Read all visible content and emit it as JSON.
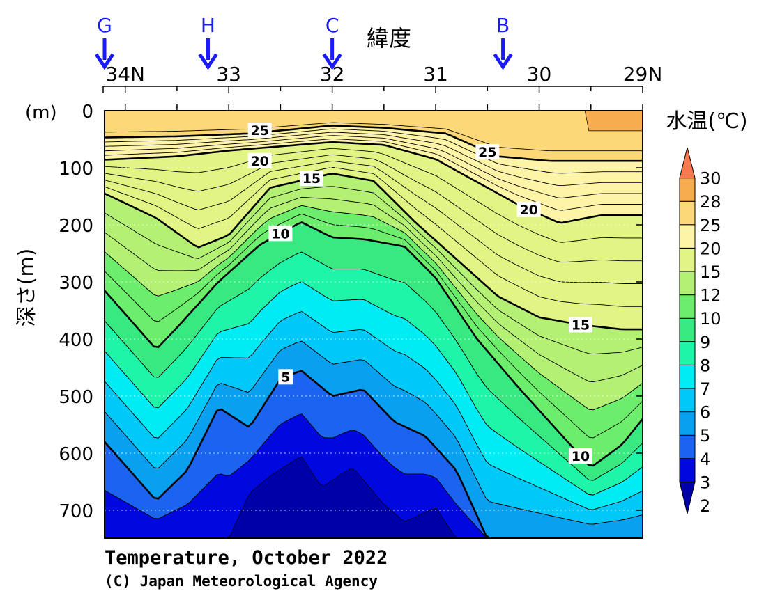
{
  "chart_data": {
    "type": "heatmap",
    "subtype": "vertical temperature section (filled contours)",
    "xlabel": "緯度",
    "ylabel": "深さ(m)",
    "y_unit_label": "(m)",
    "x_ticks": [
      "34N",
      "33",
      "32",
      "31",
      "30",
      "29N"
    ],
    "x_tick_values": [
      34,
      33,
      32,
      31,
      30,
      29
    ],
    "xlim": [
      34.2,
      29
    ],
    "y_ticks": [
      "0",
      "100",
      "200",
      "300",
      "400",
      "500",
      "600",
      "700"
    ],
    "y_tick_values": [
      0,
      100,
      200,
      300,
      400,
      500,
      600,
      700
    ],
    "ylim": [
      0,
      750
    ],
    "y_reversed": true,
    "stations": [
      {
        "name": "G",
        "lat": 34.2
      },
      {
        "name": "H",
        "lat": 33.2
      },
      {
        "name": "C",
        "lat": 32.0
      },
      {
        "name": "B",
        "lat": 30.35
      }
    ],
    "colorbar": {
      "title": "水温(℃)",
      "levels": [
        "2",
        "3",
        "4",
        "5",
        "6",
        "7",
        "8",
        "9",
        "10",
        "12",
        "15",
        "20",
        "25",
        "28",
        "30"
      ],
      "level_values": [
        2,
        3,
        4,
        5,
        6,
        7,
        8,
        9,
        10,
        12,
        15,
        20,
        25,
        28,
        30
      ],
      "colors": [
        "#0000a8",
        "#0008e0",
        "#1a64f0",
        "#0aa0f0",
        "#00c8f8",
        "#00ecf4",
        "#1ef5a8",
        "#38e880",
        "#6cee6c",
        "#b4f074",
        "#e2f484",
        "#fef4a8",
        "#fcd878",
        "#f8ac50",
        "#f87850"
      ]
    },
    "bold_contour_labels": [
      "25",
      "20",
      "15",
      "10",
      "5"
    ],
    "isotherms": [
      {
        "temp": 25,
        "lat": [
          34.2,
          33.5,
          32.8,
          32.0,
          31.5,
          30.9,
          30.4,
          29.9,
          29.4,
          29.0
        ],
        "depth": [
          47,
          45,
          40,
          26,
          30,
          40,
          80,
          88,
          88,
          88
        ]
      },
      {
        "temp": 20,
        "lat": [
          34.2,
          33.5,
          33.0,
          32.0,
          31.5,
          31.0,
          30.6,
          30.2,
          29.8,
          29.4,
          29.0
        ],
        "depth": [
          86,
          80,
          70,
          55,
          60,
          85,
          125,
          165,
          197,
          183,
          183
        ]
      },
      {
        "temp": 15,
        "lat": [
          34.2,
          33.7,
          33.3,
          33.0,
          32.6,
          32.0,
          31.6,
          31.2,
          30.8,
          30.4,
          30.0,
          29.6,
          29.2,
          29.0
        ],
        "depth": [
          145,
          188,
          240,
          218,
          135,
          110,
          123,
          195,
          260,
          325,
          362,
          375,
          383,
          383
        ]
      },
      {
        "temp": 10,
        "lat": [
          34.2,
          33.7,
          33.5,
          33.1,
          32.7,
          32.3,
          32.0,
          31.7,
          31.3,
          31.0,
          30.6,
          30.2,
          29.8,
          29.5,
          29.2,
          29.0
        ],
        "depth": [
          315,
          418,
          380,
          300,
          235,
          195,
          222,
          225,
          238,
          293,
          400,
          485,
          565,
          625,
          585,
          540
        ]
      },
      {
        "temp": 5,
        "lat": [
          34.2,
          33.7,
          33.4,
          33.1,
          32.8,
          32.5,
          32.3,
          32.0,
          31.7,
          31.4,
          31.1,
          30.8,
          30.5,
          30.0,
          29.8
        ],
        "depth": [
          580,
          683,
          630,
          520,
          555,
          470,
          455,
          500,
          488,
          545,
          570,
          630,
          750,
          750,
          750
        ]
      },
      {
        "temp": 3,
        "lat": [
          33.0,
          32.8,
          32.6,
          32.3,
          32.1,
          31.9,
          31.8,
          31.5,
          31.3,
          31.0,
          30.8
        ],
        "depth": [
          750,
          670,
          640,
          605,
          660,
          635,
          625,
          690,
          720,
          695,
          750
        ]
      }
    ],
    "caption_line1": "Temperature, October 2022",
    "caption_line2": "(C) Japan Meteorological Agency"
  }
}
